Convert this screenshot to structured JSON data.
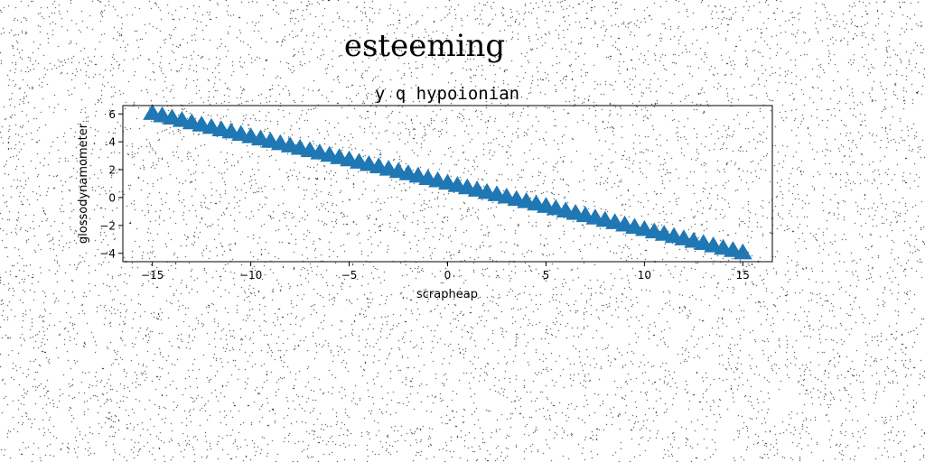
{
  "figure": {
    "suptitle": "esteeming"
  },
  "colors": {
    "marker": "#1f77b4",
    "axes": "#000000",
    "background": "#ffffff",
    "noise": "#000000"
  },
  "chart_data": {
    "type": "scatter",
    "title": "y q hypoionian",
    "xlabel": "scrapheap",
    "ylabel": "glossodynamometer",
    "marker": "triangle-up",
    "xlim": [
      -16.5,
      16.5
    ],
    "ylim": [
      -4.6,
      6.6
    ],
    "grid": false,
    "legend": "none",
    "xticks": [
      -15,
      -10,
      -5,
      0,
      5,
      10,
      15
    ],
    "xtick_labels": [
      "−15",
      "−10",
      "−5",
      "0",
      "5",
      "10",
      "15"
    ],
    "yticks": [
      -4,
      -2,
      0,
      2,
      4,
      6
    ],
    "ytick_labels": [
      "−4",
      "−2",
      "0",
      "2",
      "4",
      "6"
    ],
    "x": [
      -15.0,
      -14.5,
      -14.0,
      -13.5,
      -13.0,
      -12.5,
      -12.0,
      -11.5,
      -11.0,
      -10.5,
      -10.0,
      -9.5,
      -9.0,
      -8.5,
      -8.0,
      -7.5,
      -7.0,
      -6.5,
      -6.0,
      -5.5,
      -5.0,
      -4.5,
      -4.0,
      -3.5,
      -3.0,
      -2.5,
      -2.0,
      -1.5,
      -1.0,
      -0.5,
      0.0,
      0.5,
      1.0,
      1.5,
      2.0,
      2.5,
      3.0,
      3.5,
      4.0,
      4.5,
      5.0,
      5.5,
      6.0,
      6.5,
      7.0,
      7.5,
      8.0,
      8.5,
      9.0,
      9.5,
      10.0,
      10.5,
      11.0,
      11.5,
      12.0,
      12.5,
      13.0,
      13.5,
      14.0,
      14.5,
      15.0
    ],
    "y": [
      6.0,
      5.83,
      5.67,
      5.5,
      5.33,
      5.17,
      5.0,
      4.83,
      4.67,
      4.5,
      4.33,
      4.17,
      4.0,
      3.83,
      3.67,
      3.5,
      3.33,
      3.17,
      3.0,
      2.83,
      2.67,
      2.5,
      2.33,
      2.17,
      2.0,
      1.83,
      1.67,
      1.5,
      1.33,
      1.17,
      1.0,
      0.83,
      0.67,
      0.5,
      0.33,
      0.17,
      0.0,
      -0.17,
      -0.33,
      -0.5,
      -0.67,
      -0.83,
      -1.0,
      -1.17,
      -1.33,
      -1.5,
      -1.67,
      -1.83,
      -2.0,
      -2.17,
      -2.33,
      -2.5,
      -2.67,
      -2.83,
      -3.0,
      -3.17,
      -3.33,
      -3.5,
      -3.67,
      -3.83,
      -4.0
    ]
  }
}
